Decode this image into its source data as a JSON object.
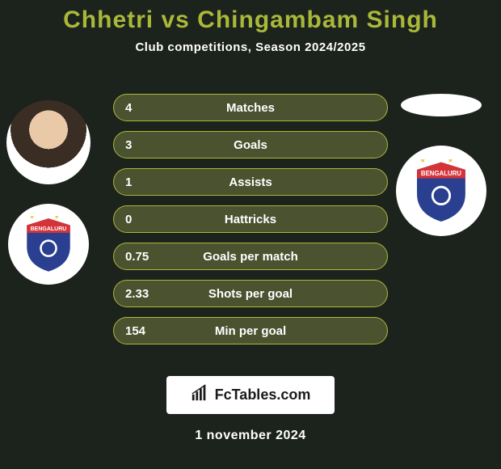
{
  "colors": {
    "background": "#1c221c",
    "title": "#aab83a",
    "subtitle": "#ffffff",
    "row_border": "#aab83a",
    "row_bg": "#4b5230",
    "row_text": "#ffffff",
    "date": "#ffffff",
    "brand_text": "#1a1a1a"
  },
  "title": {
    "text": "Chhetri vs Chingambam Singh",
    "fontsize": 30
  },
  "subtitle": {
    "text": "Club competitions, Season 2024/2025",
    "fontsize": 15
  },
  "players": {
    "left": {
      "name": "Chhetri",
      "has_photo": true,
      "club": {
        "name": "Bengaluru FC",
        "shield_primary": "#d43338",
        "shield_secondary": "#2a3f8f",
        "shield_text": "BENGALURU",
        "stars_color": "#e9c64a"
      }
    },
    "right": {
      "name": "Chingambam Singh",
      "has_photo": false,
      "club": {
        "name": "Bengaluru FC",
        "shield_primary": "#d43338",
        "shield_secondary": "#2a3f8f",
        "shield_text": "BENGALURU",
        "stars_color": "#e9c64a"
      }
    }
  },
  "stats": {
    "row_fontsize": 15,
    "rows": [
      {
        "label": "Matches",
        "left": "4",
        "right": ""
      },
      {
        "label": "Goals",
        "left": "3",
        "right": ""
      },
      {
        "label": "Assists",
        "left": "1",
        "right": ""
      },
      {
        "label": "Hattricks",
        "left": "0",
        "right": ""
      },
      {
        "label": "Goals per match",
        "left": "0.75",
        "right": ""
      },
      {
        "label": "Shots per goal",
        "left": "2.33",
        "right": ""
      },
      {
        "label": "Min per goal",
        "left": "154",
        "right": ""
      }
    ]
  },
  "brand": {
    "text": "FcTables.com",
    "icon": "barchart"
  },
  "date": {
    "text": "1 november 2024",
    "fontsize": 16
  }
}
